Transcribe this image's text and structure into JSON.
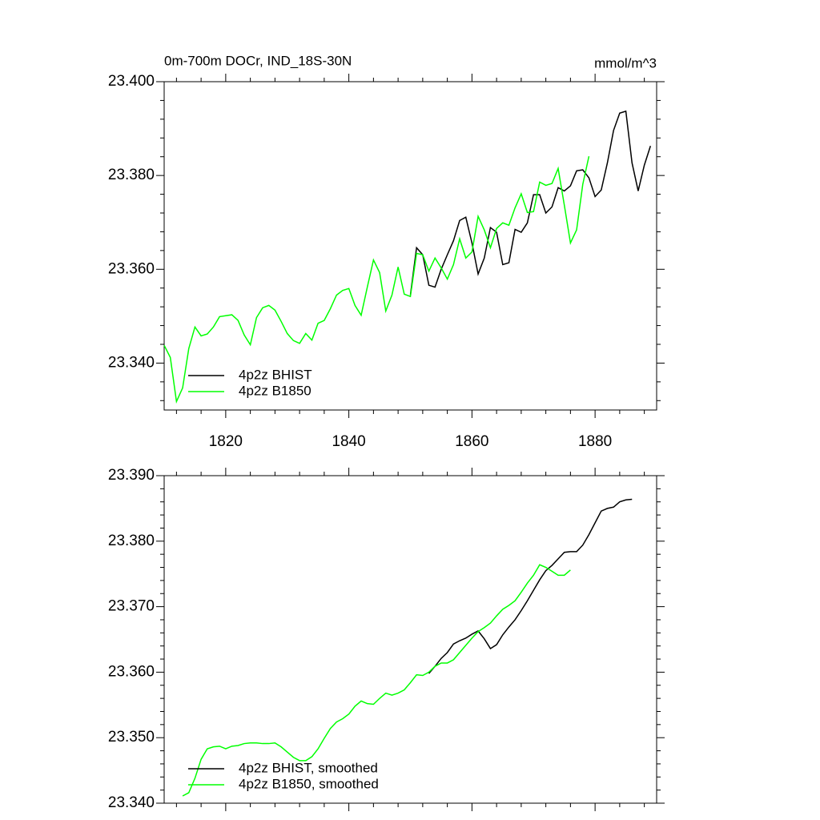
{
  "chart_data": [
    {
      "type": "line",
      "title": "0m-700m DOCr, IND_18S-30N",
      "units": "mmol/m^3",
      "x": [
        1810,
        1811,
        1812,
        1813,
        1814,
        1815,
        1816,
        1817,
        1818,
        1819,
        1820,
        1821,
        1822,
        1823,
        1824,
        1825,
        1826,
        1827,
        1828,
        1829,
        1830,
        1831,
        1832,
        1833,
        1834,
        1835,
        1836,
        1837,
        1838,
        1839,
        1840,
        1841,
        1842,
        1843,
        1844,
        1845,
        1846,
        1847,
        1848,
        1849,
        1850,
        1851,
        1852,
        1853,
        1854,
        1855,
        1856,
        1857,
        1858,
        1859,
        1860,
        1861,
        1862,
        1863,
        1864,
        1865,
        1866,
        1867,
        1868,
        1869,
        1870,
        1871,
        1872,
        1873,
        1874,
        1875,
        1876,
        1877,
        1878,
        1879,
        1880,
        1881,
        1882,
        1883,
        1884,
        1885,
        1886,
        1887,
        1888,
        1889
      ],
      "series": [
        {
          "name": "4p2z BHIST",
          "color": "#000000",
          "values": [
            null,
            null,
            null,
            null,
            null,
            null,
            null,
            null,
            null,
            null,
            null,
            null,
            null,
            null,
            null,
            null,
            null,
            null,
            null,
            null,
            null,
            null,
            null,
            null,
            null,
            null,
            null,
            null,
            null,
            null,
            null,
            null,
            null,
            null,
            null,
            null,
            null,
            null,
            null,
            null,
            23.3545,
            23.3646,
            23.3631,
            23.3566,
            23.3562,
            23.36,
            23.3631,
            23.3661,
            23.3704,
            23.3711,
            23.3656,
            23.359,
            23.3624,
            23.3689,
            23.3679,
            23.361,
            23.3614,
            23.3685,
            23.3679,
            23.3699,
            23.3759,
            23.3759,
            23.372,
            23.3733,
            23.3774,
            23.3767,
            23.3778,
            23.381,
            23.3812,
            23.3795,
            23.3755,
            23.3769,
            23.3827,
            23.3896,
            23.3933,
            23.3937,
            23.3827,
            23.3767,
            23.3822,
            23.3863
          ]
        },
        {
          "name": "4p2z B1850",
          "color": "#00ff00",
          "values": [
            23.3438,
            23.3412,
            23.3318,
            23.3347,
            23.3431,
            23.3477,
            23.3458,
            23.3462,
            23.3477,
            23.3499,
            23.3501,
            23.3503,
            23.3491,
            23.346,
            23.3439,
            23.3497,
            23.3518,
            23.3523,
            23.3513,
            23.3489,
            23.3463,
            23.3448,
            23.3442,
            23.3463,
            23.3449,
            23.3485,
            23.3491,
            23.3516,
            23.3545,
            23.3555,
            23.3559,
            23.3523,
            23.3502,
            23.3562,
            23.362,
            23.3593,
            23.3511,
            23.3545,
            23.3605,
            23.3547,
            23.3542,
            23.3634,
            23.3631,
            23.3596,
            23.3624,
            23.3603,
            23.3579,
            23.361,
            23.3665,
            23.3624,
            23.3637,
            23.3713,
            23.3684,
            23.3646,
            23.3687,
            23.3699,
            23.3694,
            23.3731,
            23.3761,
            23.3721,
            23.3723,
            23.3786,
            23.3779,
            23.3783,
            23.3815,
            23.3737,
            23.3656,
            23.3684,
            23.3781,
            23.3841,
            null,
            null,
            null,
            null,
            null,
            null,
            null,
            null,
            null,
            null
          ]
        }
      ],
      "xlim": [
        1810,
        1890
      ],
      "xticks": [
        1820,
        1840,
        1860,
        1880
      ],
      "xtick_labels_shown": true,
      "ylim": [
        23.33,
        23.4
      ],
      "yticks": [
        {
          "value": 23.34,
          "label": "23.340"
        },
        {
          "value": 23.36,
          "label": "23.360"
        },
        {
          "value": 23.38,
          "label": "23.380"
        },
        {
          "value": 23.4,
          "label": "23.400"
        }
      ],
      "legend": "lower left"
    },
    {
      "type": "line",
      "x": [
        1810,
        1811,
        1812,
        1813,
        1814,
        1815,
        1816,
        1817,
        1818,
        1819,
        1820,
        1821,
        1822,
        1823,
        1824,
        1825,
        1826,
        1827,
        1828,
        1829,
        1830,
        1831,
        1832,
        1833,
        1834,
        1835,
        1836,
        1837,
        1838,
        1839,
        1840,
        1841,
        1842,
        1843,
        1844,
        1845,
        1846,
        1847,
        1848,
        1849,
        1850,
        1851,
        1852,
        1853,
        1854,
        1855,
        1856,
        1857,
        1858,
        1859,
        1860,
        1861,
        1862,
        1863,
        1864,
        1865,
        1866,
        1867,
        1868,
        1869,
        1870,
        1871,
        1872,
        1873,
        1874,
        1875,
        1876,
        1877,
        1878,
        1879,
        1880,
        1881,
        1882,
        1883,
        1884,
        1885,
        1886,
        1887,
        1888,
        1889
      ],
      "series": [
        {
          "name": "4p2z BHIST, smoothed",
          "color": "#000000",
          "values": [
            null,
            null,
            null,
            null,
            null,
            null,
            null,
            null,
            null,
            null,
            null,
            null,
            null,
            null,
            null,
            null,
            null,
            null,
            null,
            null,
            null,
            null,
            null,
            null,
            null,
            null,
            null,
            null,
            null,
            null,
            null,
            null,
            null,
            null,
            null,
            null,
            null,
            null,
            null,
            null,
            null,
            null,
            null,
            23.3598,
            23.3609,
            23.3621,
            23.363,
            23.3643,
            23.3648,
            23.3652,
            23.3658,
            23.3663,
            23.3651,
            23.3636,
            23.3642,
            23.3657,
            23.3669,
            23.368,
            23.3694,
            23.3709,
            23.3725,
            23.3741,
            23.3755,
            23.3763,
            23.3773,
            23.3783,
            23.3784,
            23.3784,
            23.3794,
            23.381,
            23.3828,
            23.3846,
            23.385,
            23.3852,
            23.386,
            23.3863,
            23.3864,
            null,
            null,
            null
          ]
        },
        {
          "name": "4p2z B1850, smoothed",
          "color": "#00ff00",
          "values": [
            null,
            null,
            null,
            23.3411,
            23.3416,
            23.3438,
            23.3467,
            23.3483,
            23.3486,
            23.3487,
            23.3483,
            23.3487,
            23.3488,
            23.3491,
            23.3492,
            23.3492,
            23.3491,
            23.3491,
            23.3492,
            23.3486,
            23.3478,
            23.347,
            23.3465,
            23.3465,
            23.3471,
            23.3483,
            23.3499,
            23.3514,
            23.3524,
            23.3529,
            23.3536,
            23.3548,
            23.3556,
            23.3552,
            23.3551,
            23.356,
            23.3568,
            23.3565,
            23.3568,
            23.3573,
            23.3584,
            23.3596,
            23.3595,
            23.36,
            23.3609,
            23.3614,
            23.3614,
            23.3619,
            23.363,
            23.3641,
            23.3652,
            23.3662,
            23.3668,
            23.3675,
            23.3686,
            23.3696,
            23.3702,
            23.3709,
            23.3722,
            23.3736,
            23.3748,
            23.3764,
            23.376,
            23.3754,
            23.3748,
            23.3748,
            23.3756,
            null,
            null,
            null,
            null,
            null,
            null,
            null,
            null,
            null,
            null,
            null,
            null,
            null
          ]
        }
      ],
      "xlim": [
        1810,
        1890
      ],
      "xticks": [
        1820,
        1840,
        1860,
        1880
      ],
      "xtick_labels_shown": false,
      "ylim": [
        23.34,
        23.39
      ],
      "yticks": [
        {
          "value": 23.34,
          "label": "23.340"
        },
        {
          "value": 23.35,
          "label": "23.350"
        },
        {
          "value": 23.36,
          "label": "23.360"
        },
        {
          "value": 23.37,
          "label": "23.370"
        },
        {
          "value": 23.38,
          "label": "23.380"
        },
        {
          "value": 23.39,
          "label": "23.390"
        }
      ],
      "legend": "lower left"
    }
  ]
}
